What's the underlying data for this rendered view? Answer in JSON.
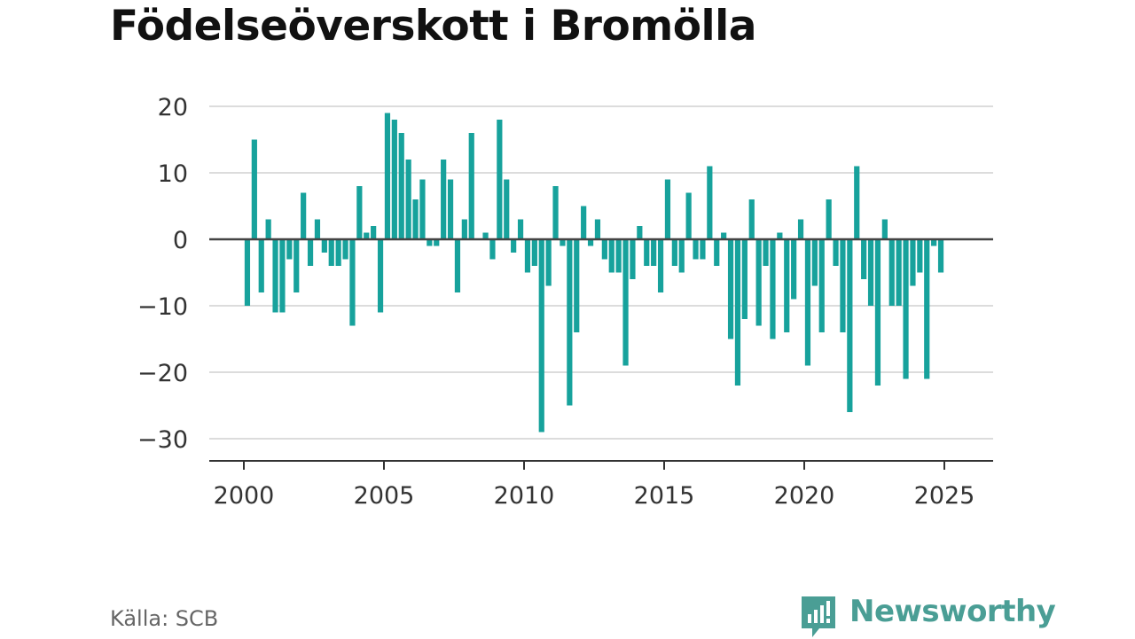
{
  "title": "Födelseöverskott i Bromölla",
  "source": "Källa: SCB",
  "brand": {
    "name": "Newsworthy",
    "icon": "newsworthy-logo-icon",
    "color": "#4a9e95"
  },
  "colors": {
    "bar": "#17a29c",
    "grid": "#dcdcdc",
    "zero_line": "#444444",
    "axis": "#333333",
    "tick_text": "#333333"
  },
  "chart_data": {
    "type": "bar",
    "title": "Födelseöverskott i Bromölla",
    "xlabel": "",
    "ylabel": "",
    "frequency": "quarterly",
    "x_start": "2000 Q1",
    "ylim": [
      -33,
      22
    ],
    "yticks": [
      20,
      10,
      0,
      -10,
      -20,
      -30
    ],
    "ytick_labels": [
      "20",
      "10",
      "0",
      "−10",
      "−20",
      "−30"
    ],
    "xticks": [
      "2000",
      "2005",
      "2010",
      "2015",
      "2020",
      "2025"
    ],
    "grid": true,
    "values": [
      -10,
      15,
      -8,
      3,
      -11,
      -11,
      -3,
      -8,
      7,
      -4,
      3,
      -2,
      -4,
      -4,
      -3,
      -13,
      8,
      1,
      2,
      -11,
      19,
      18,
      16,
      12,
      6,
      9,
      -1,
      -1,
      12,
      9,
      -8,
      3,
      16,
      0,
      1,
      -3,
      18,
      9,
      -2,
      3,
      -5,
      -4,
      -29,
      -7,
      8,
      -1,
      -25,
      -14,
      5,
      -1,
      3,
      -3,
      -5,
      -5,
      -19,
      -6,
      2,
      -4,
      -4,
      -8,
      9,
      -4,
      -5,
      7,
      -3,
      -3,
      11,
      -4,
      1,
      -15,
      -22,
      -12,
      6,
      -13,
      -4,
      -15,
      1,
      -14,
      -9,
      3,
      -19,
      -7,
      -14,
      6,
      -4,
      -14,
      -26,
      11,
      -6,
      -10,
      -22,
      3,
      -10,
      -10,
      -21,
      -7,
      -5,
      -21,
      -1,
      -5
    ]
  }
}
